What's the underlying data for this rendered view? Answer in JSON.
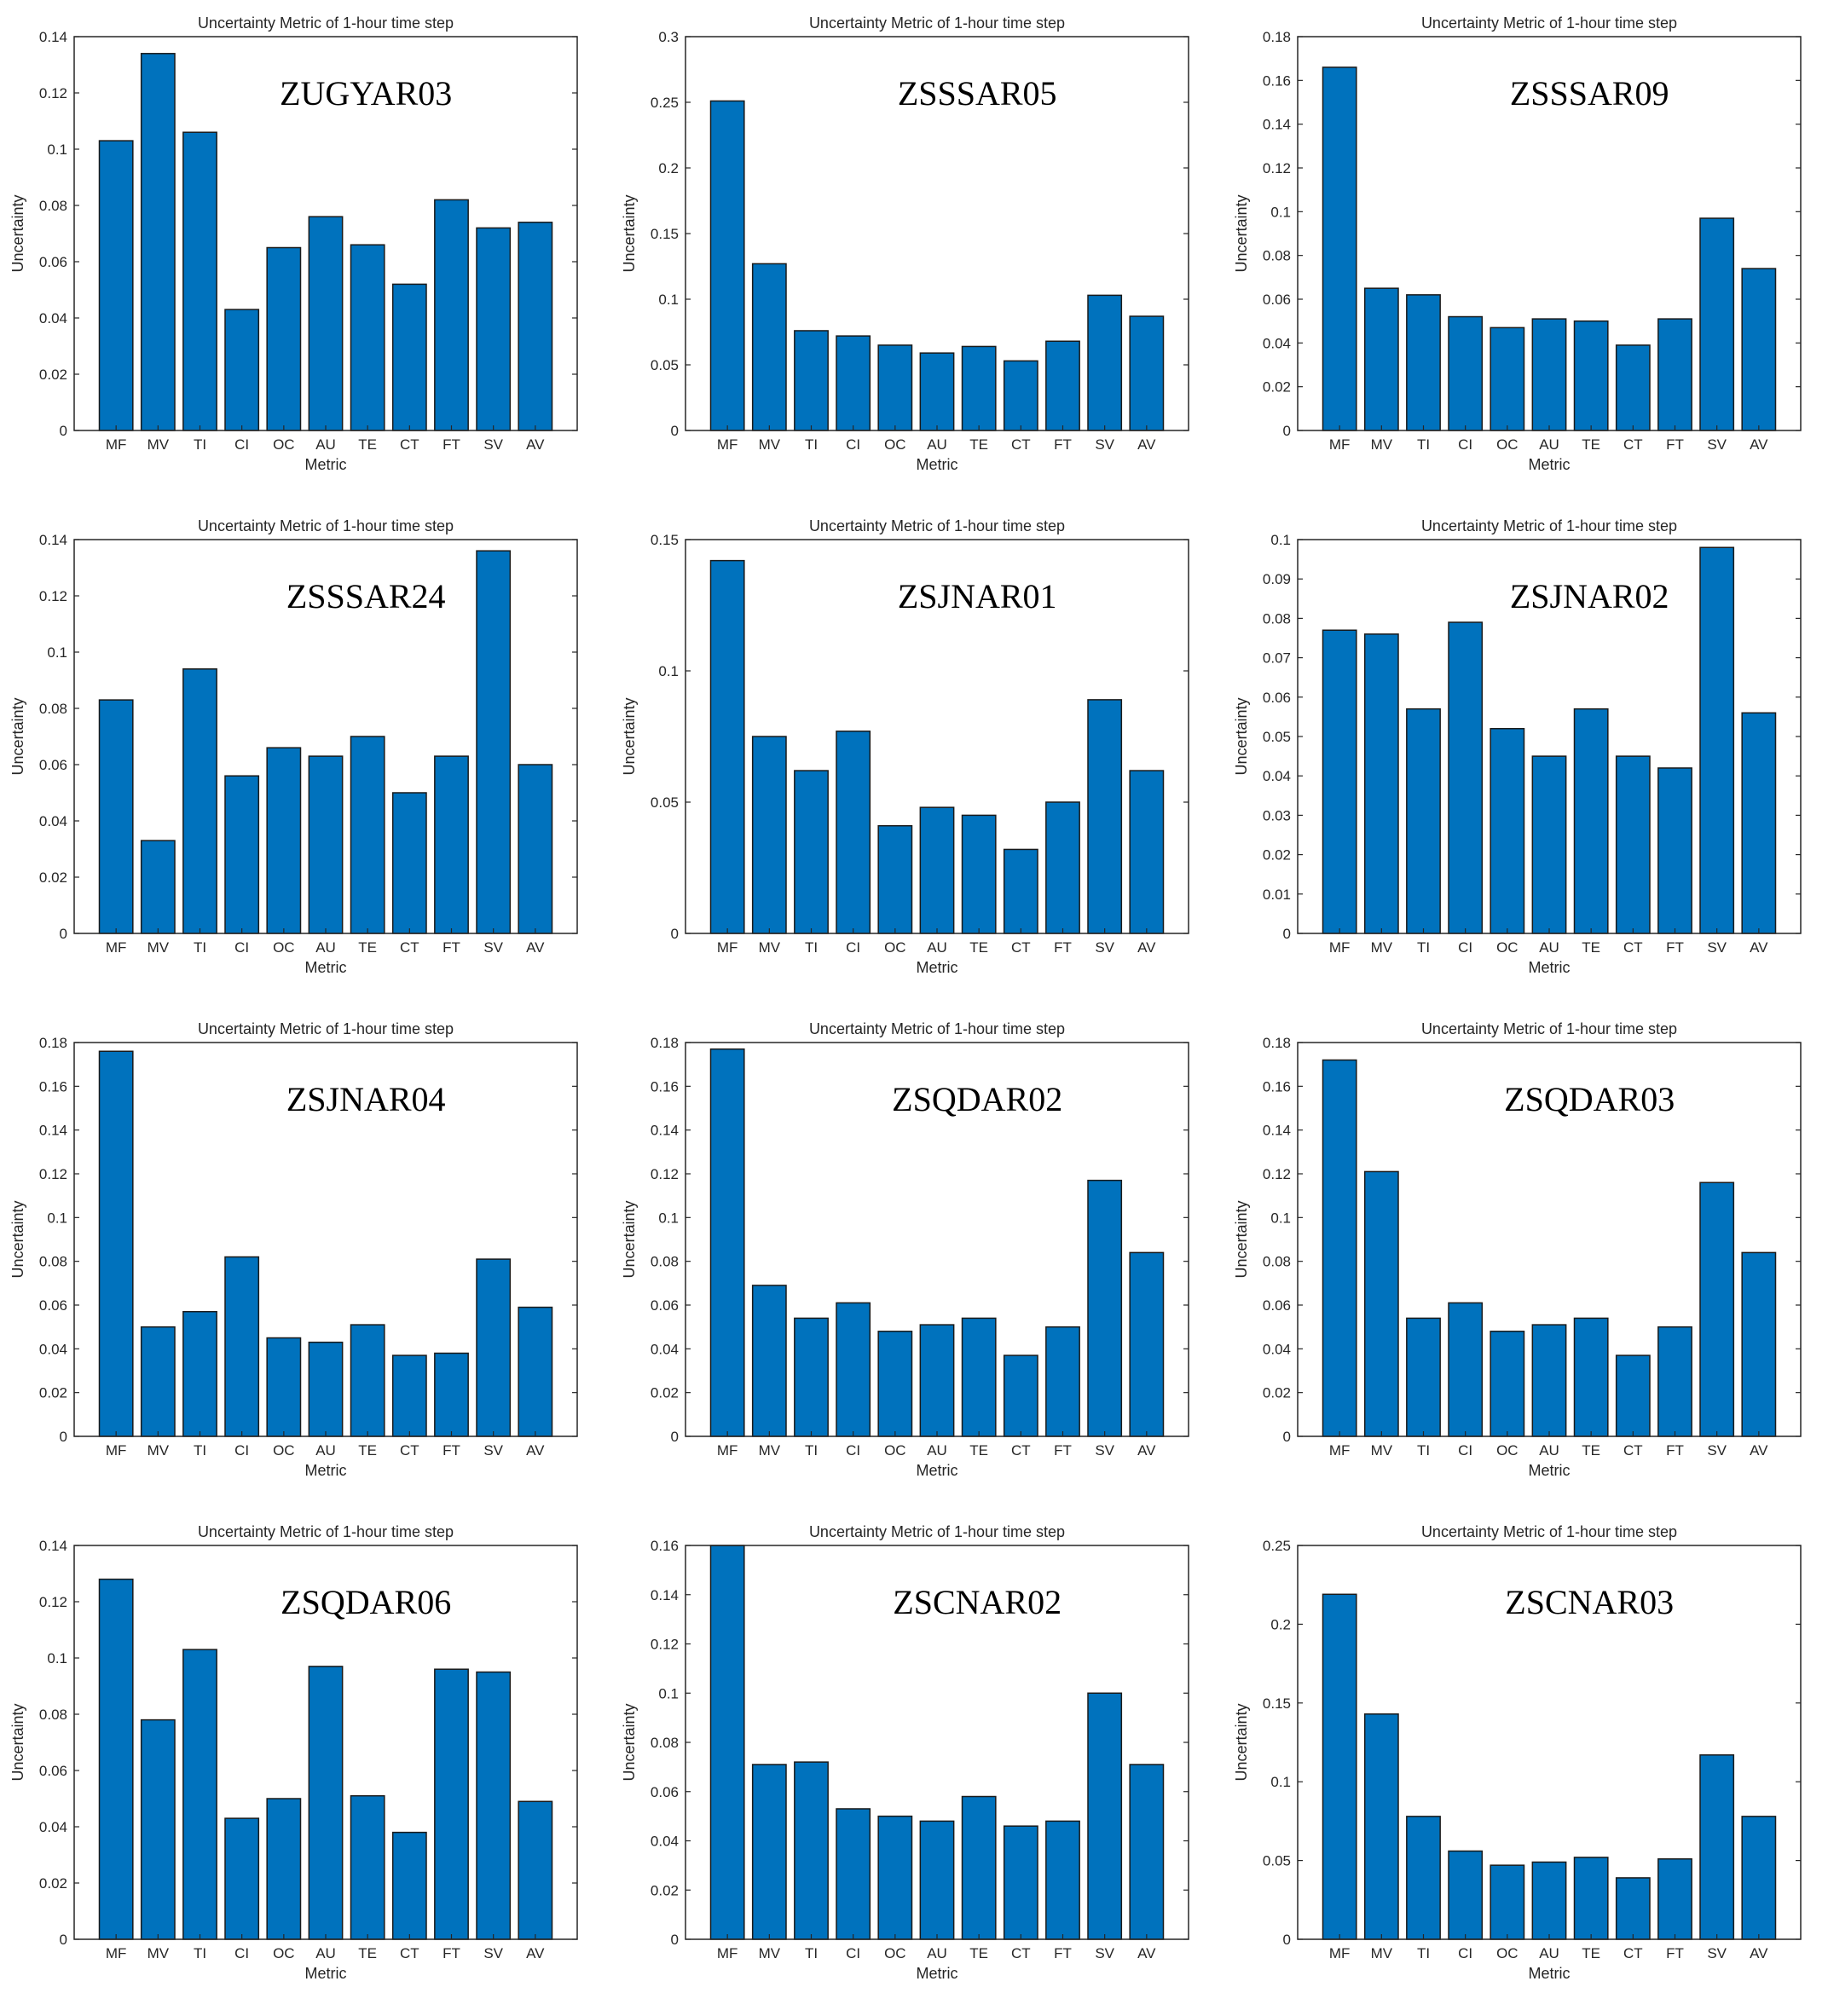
{
  "colors": {
    "bar": "#0072BD",
    "bar_edge": "#1a1a1a",
    "axis": "#262626",
    "background": "#ffffff"
  },
  "chart_data": [
    {
      "type": "bar",
      "title": "Uncertainty Metric of 1-hour time step",
      "panel_label": "ZUGYAR03",
      "xlabel": "Metric",
      "ylabel": "Uncertainty",
      "categories": [
        "MF",
        "MV",
        "TI",
        "CI",
        "OC",
        "AU",
        "TE",
        "CT",
        "FT",
        "SV",
        "AV"
      ],
      "values": [
        0.103,
        0.134,
        0.106,
        0.043,
        0.065,
        0.076,
        0.066,
        0.052,
        0.082,
        0.072,
        0.074
      ],
      "ylim": [
        0,
        0.14
      ],
      "yticks": [
        0,
        0.02,
        0.04,
        0.06,
        0.08,
        0.1,
        0.12,
        0.14
      ],
      "ytick_labels": [
        "0",
        "0.02",
        "0.04",
        "0.06",
        "0.08",
        "0.1",
        "0.12",
        "0.14"
      ]
    },
    {
      "type": "bar",
      "title": "Uncertainty Metric of 1-hour time step",
      "panel_label": "ZSSSAR05",
      "xlabel": "Metric",
      "ylabel": "Uncertainty",
      "categories": [
        "MF",
        "MV",
        "TI",
        "CI",
        "OC",
        "AU",
        "TE",
        "CT",
        "FT",
        "SV",
        "AV"
      ],
      "values": [
        0.251,
        0.127,
        0.076,
        0.072,
        0.065,
        0.059,
        0.064,
        0.053,
        0.068,
        0.103,
        0.087
      ],
      "ylim": [
        0,
        0.3
      ],
      "yticks": [
        0,
        0.05,
        0.1,
        0.15,
        0.2,
        0.25,
        0.3
      ],
      "ytick_labels": [
        "0",
        "0.05",
        "0.1",
        "0.15",
        "0.2",
        "0.25",
        "0.3"
      ]
    },
    {
      "type": "bar",
      "title": "Uncertainty Metric of 1-hour time step",
      "panel_label": "ZSSSAR09",
      "xlabel": "Metric",
      "ylabel": "Uncertainty",
      "categories": [
        "MF",
        "MV",
        "TI",
        "CI",
        "OC",
        "AU",
        "TE",
        "CT",
        "FT",
        "SV",
        "AV"
      ],
      "values": [
        0.166,
        0.065,
        0.062,
        0.052,
        0.047,
        0.051,
        0.05,
        0.039,
        0.051,
        0.097,
        0.074
      ],
      "ylim": [
        0,
        0.18
      ],
      "yticks": [
        0,
        0.02,
        0.04,
        0.06,
        0.08,
        0.1,
        0.12,
        0.14,
        0.16,
        0.18
      ],
      "ytick_labels": [
        "0",
        "0.02",
        "0.04",
        "0.06",
        "0.08",
        "0.1",
        "0.12",
        "0.14",
        "0.16",
        "0.18"
      ]
    },
    {
      "type": "bar",
      "title": "Uncertainty Metric of 1-hour time step",
      "panel_label": "ZSSSAR24",
      "xlabel": "Metric",
      "ylabel": "Uncertainty",
      "categories": [
        "MF",
        "MV",
        "TI",
        "CI",
        "OC",
        "AU",
        "TE",
        "CT",
        "FT",
        "SV",
        "AV"
      ],
      "values": [
        0.083,
        0.033,
        0.094,
        0.056,
        0.066,
        0.063,
        0.07,
        0.05,
        0.063,
        0.136,
        0.06
      ],
      "ylim": [
        0,
        0.14
      ],
      "yticks": [
        0,
        0.02,
        0.04,
        0.06,
        0.08,
        0.1,
        0.12,
        0.14
      ],
      "ytick_labels": [
        "0",
        "0.02",
        "0.04",
        "0.06",
        "0.08",
        "0.1",
        "0.12",
        "0.14"
      ]
    },
    {
      "type": "bar",
      "title": "Uncertainty Metric of 1-hour time step",
      "panel_label": "ZSJNAR01",
      "xlabel": "Metric",
      "ylabel": "Uncertainty",
      "categories": [
        "MF",
        "MV",
        "TI",
        "CI",
        "OC",
        "AU",
        "TE",
        "CT",
        "FT",
        "SV",
        "AV"
      ],
      "values": [
        0.142,
        0.075,
        0.062,
        0.077,
        0.041,
        0.048,
        0.045,
        0.032,
        0.05,
        0.089,
        0.062
      ],
      "ylim": [
        0,
        0.15
      ],
      "yticks": [
        0,
        0.05,
        0.1,
        0.15
      ],
      "ytick_labels": [
        "0",
        "0.05",
        "0.1",
        "0.15"
      ]
    },
    {
      "type": "bar",
      "title": "Uncertainty Metric of 1-hour time step",
      "panel_label": "ZSJNAR02",
      "xlabel": "Metric",
      "ylabel": "Uncertainty",
      "categories": [
        "MF",
        "MV",
        "TI",
        "CI",
        "OC",
        "AU",
        "TE",
        "CT",
        "FT",
        "SV",
        "AV"
      ],
      "values": [
        0.077,
        0.076,
        0.057,
        0.079,
        0.052,
        0.045,
        0.057,
        0.045,
        0.042,
        0.098,
        0.056
      ],
      "ylim": [
        0,
        0.1
      ],
      "yticks": [
        0,
        0.01,
        0.02,
        0.03,
        0.04,
        0.05,
        0.06,
        0.07,
        0.08,
        0.09,
        0.1
      ],
      "ytick_labels": [
        "0",
        "0.01",
        "0.02",
        "0.03",
        "0.04",
        "0.05",
        "0.06",
        "0.07",
        "0.08",
        "0.09",
        "0.1"
      ]
    },
    {
      "type": "bar",
      "title": "Uncertainty Metric of 1-hour time step",
      "panel_label": "ZSJNAR04",
      "xlabel": "Metric",
      "ylabel": "Uncertainty",
      "categories": [
        "MF",
        "MV",
        "TI",
        "CI",
        "OC",
        "AU",
        "TE",
        "CT",
        "FT",
        "SV",
        "AV"
      ],
      "values": [
        0.176,
        0.05,
        0.057,
        0.082,
        0.045,
        0.043,
        0.051,
        0.037,
        0.038,
        0.081,
        0.059
      ],
      "ylim": [
        0,
        0.18
      ],
      "yticks": [
        0,
        0.02,
        0.04,
        0.06,
        0.08,
        0.1,
        0.12,
        0.14,
        0.16,
        0.18
      ],
      "ytick_labels": [
        "0",
        "0.02",
        "0.04",
        "0.06",
        "0.08",
        "0.1",
        "0.12",
        "0.14",
        "0.16",
        "0.18"
      ]
    },
    {
      "type": "bar",
      "title": "Uncertainty Metric of 1-hour time step",
      "panel_label": "ZSQDAR02",
      "xlabel": "Metric",
      "ylabel": "Uncertainty",
      "categories": [
        "MF",
        "MV",
        "TI",
        "CI",
        "OC",
        "AU",
        "TE",
        "CT",
        "FT",
        "SV",
        "AV"
      ],
      "values": [
        0.177,
        0.069,
        0.054,
        0.061,
        0.048,
        0.051,
        0.054,
        0.037,
        0.05,
        0.117,
        0.084
      ],
      "ylim": [
        0,
        0.18
      ],
      "yticks": [
        0,
        0.02,
        0.04,
        0.06,
        0.08,
        0.1,
        0.12,
        0.14,
        0.16,
        0.18
      ],
      "ytick_labels": [
        "0",
        "0.02",
        "0.04",
        "0.06",
        "0.08",
        "0.1",
        "0.12",
        "0.14",
        "0.16",
        "0.18"
      ]
    },
    {
      "type": "bar",
      "title": "Uncertainty Metric of 1-hour time step",
      "panel_label": "ZSQDAR03",
      "xlabel": "Metric",
      "ylabel": "Uncertainty",
      "categories": [
        "MF",
        "MV",
        "TI",
        "CI",
        "OC",
        "AU",
        "TE",
        "CT",
        "FT",
        "SV",
        "AV"
      ],
      "values": [
        0.172,
        0.121,
        0.054,
        0.061,
        0.048,
        0.051,
        0.054,
        0.037,
        0.05,
        0.116,
        0.084
      ],
      "ylim": [
        0,
        0.18
      ],
      "yticks": [
        0,
        0.02,
        0.04,
        0.06,
        0.08,
        0.1,
        0.12,
        0.14,
        0.16,
        0.18
      ],
      "ytick_labels": [
        "0",
        "0.02",
        "0.04",
        "0.06",
        "0.08",
        "0.1",
        "0.12",
        "0.14",
        "0.16",
        "0.18"
      ]
    },
    {
      "type": "bar",
      "title": "Uncertainty Metric of 1-hour time step",
      "panel_label": "ZSQDAR06",
      "xlabel": "Metric",
      "ylabel": "Uncertainty",
      "categories": [
        "MF",
        "MV",
        "TI",
        "CI",
        "OC",
        "AU",
        "TE",
        "CT",
        "FT",
        "SV",
        "AV"
      ],
      "values": [
        0.128,
        0.078,
        0.103,
        0.043,
        0.05,
        0.097,
        0.051,
        0.038,
        0.096,
        0.095,
        0.049
      ],
      "ylim": [
        0,
        0.14
      ],
      "yticks": [
        0,
        0.02,
        0.04,
        0.06,
        0.08,
        0.1,
        0.12,
        0.14
      ],
      "ytick_labels": [
        "0",
        "0.02",
        "0.04",
        "0.06",
        "0.08",
        "0.1",
        "0.12",
        "0.14"
      ]
    },
    {
      "type": "bar",
      "title": "Uncertainty Metric of 1-hour time step",
      "panel_label": "ZSCNAR02",
      "xlabel": "Metric",
      "ylabel": "Uncertainty",
      "categories": [
        "MF",
        "MV",
        "TI",
        "CI",
        "OC",
        "AU",
        "TE",
        "CT",
        "FT",
        "SV",
        "AV"
      ],
      "values": [
        0.16,
        0.071,
        0.072,
        0.053,
        0.05,
        0.048,
        0.058,
        0.046,
        0.048,
        0.1,
        0.071
      ],
      "ylim": [
        0,
        0.16
      ],
      "yticks": [
        0,
        0.02,
        0.04,
        0.06,
        0.08,
        0.1,
        0.12,
        0.14,
        0.16
      ],
      "ytick_labels": [
        "0",
        "0.02",
        "0.04",
        "0.06",
        "0.08",
        "0.1",
        "0.12",
        "0.14",
        "0.16"
      ]
    },
    {
      "type": "bar",
      "title": "Uncertainty Metric of 1-hour time step",
      "panel_label": "ZSCNAR03",
      "xlabel": "Metric",
      "ylabel": "Uncertainty",
      "categories": [
        "MF",
        "MV",
        "TI",
        "CI",
        "OC",
        "AU",
        "TE",
        "CT",
        "FT",
        "SV",
        "AV"
      ],
      "values": [
        0.219,
        0.143,
        0.078,
        0.056,
        0.047,
        0.049,
        0.052,
        0.039,
        0.051,
        0.117,
        0.078
      ],
      "ylim": [
        0,
        0.25
      ],
      "yticks": [
        0,
        0.05,
        0.1,
        0.15,
        0.2,
        0.25
      ],
      "ytick_labels": [
        "0",
        "0.05",
        "0.1",
        "0.15",
        "0.2",
        "0.25"
      ]
    }
  ]
}
